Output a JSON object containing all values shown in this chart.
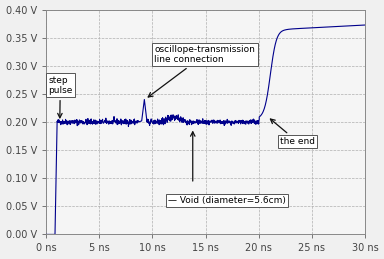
{
  "xlim": [
    0,
    30
  ],
  "ylim": [
    0.0,
    0.4
  ],
  "xticks": [
    0,
    5,
    10,
    15,
    20,
    25,
    30
  ],
  "yticks": [
    0.0,
    0.05,
    0.1,
    0.15,
    0.2,
    0.25,
    0.3,
    0.35,
    0.4
  ],
  "xtick_labels": [
    "0 ns",
    "5 ns",
    "10 ns",
    "15 ns",
    "20 ns",
    "25 ns",
    "30 ns"
  ],
  "ytick_labels": [
    "0.00 V",
    "0.05 V",
    "0.10 V",
    "0.15 V",
    "0.20 V",
    "0.25 V",
    "0.30 V",
    "0.35 V",
    "0.40 V"
  ],
  "line_color": "#00008B",
  "background_color": "#f5f5f5",
  "grid_color": "#b0b0b0",
  "figsize": [
    3.84,
    2.59
  ],
  "dpi": 100
}
